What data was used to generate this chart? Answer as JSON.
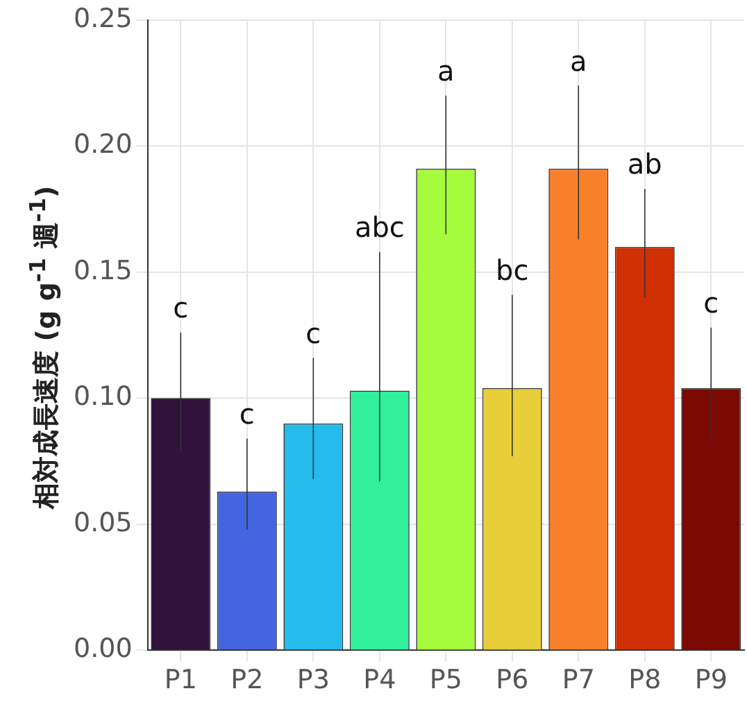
{
  "chart_data": {
    "type": "bar",
    "ylabel": "相対成長速度 (g g$^{-1}$ 週$^{-1}$)",
    "categories": [
      "P1",
      "P2",
      "P3",
      "P4",
      "P5",
      "P6",
      "P7",
      "P8",
      "P9"
    ],
    "values": [
      0.1,
      0.063,
      0.09,
      0.103,
      0.191,
      0.104,
      0.191,
      0.16,
      0.104
    ],
    "colors": [
      "#30123b",
      "#4465e0",
      "#25bbea",
      "#30f09b",
      "#a4fc3c",
      "#e8cf3a",
      "#f8802a",
      "#d12f04",
      "#7a0a03"
    ],
    "errors": [
      [
        0.079,
        0.126
      ],
      [
        0.048,
        0.084
      ],
      [
        0.068,
        0.116
      ],
      [
        0.067,
        0.158
      ],
      [
        0.165,
        0.22
      ],
      [
        0.077,
        0.141
      ],
      [
        0.163,
        0.224
      ],
      [
        0.14,
        0.183
      ],
      [
        0.083,
        0.128
      ]
    ],
    "annotations": [
      {
        "text": "c",
        "x": "P1",
        "y": 0.126
      },
      {
        "text": "c",
        "x": "P2",
        "y": 0.084
      },
      {
        "text": "c",
        "x": "P3",
        "y": 0.116
      },
      {
        "text": "abc",
        "x": "P4",
        "y": 0.158
      },
      {
        "text": "a",
        "x": "P5",
        "y": 0.22
      },
      {
        "text": "bc",
        "x": "P6",
        "y": 0.141
      },
      {
        "text": "a",
        "x": "P7",
        "y": 0.224
      },
      {
        "text": "ab",
        "x": "P8",
        "y": 0.183
      },
      {
        "text": "c",
        "x": "P9",
        "y": 0.128
      }
    ],
    "ylim": [
      0,
      0.25
    ],
    "yticks": [
      {
        "value": 0,
        "label": "0.00"
      },
      {
        "value": 0.05,
        "label": "0.05"
      },
      {
        "value": 0.1,
        "label": "0.10"
      },
      {
        "value": 0.15,
        "label": "0.15"
      },
      {
        "value": 0.2,
        "label": "0.20"
      },
      {
        "value": 0.25,
        "label": "0.25"
      }
    ],
    "grid": true,
    "legend": false
  }
}
